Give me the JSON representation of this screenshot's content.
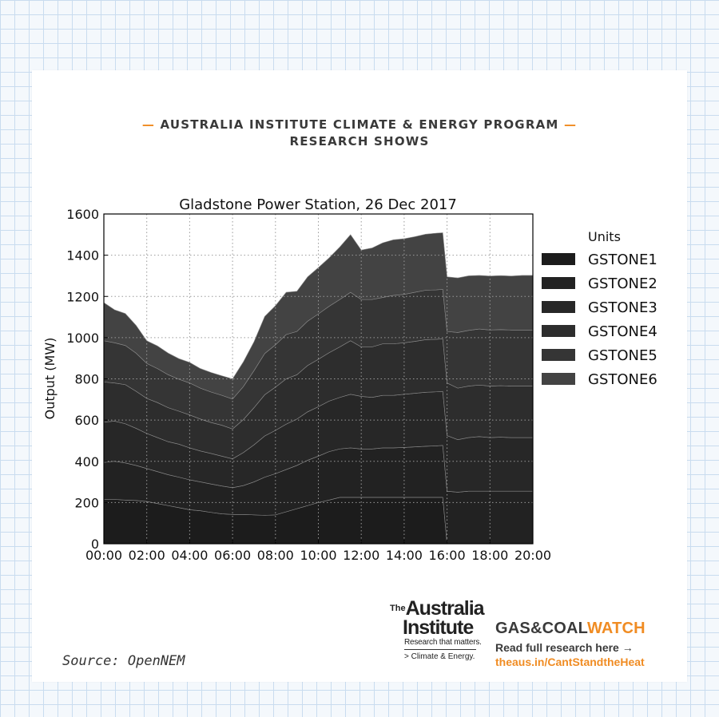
{
  "header": {
    "line1": "AUSTRALIA INSTITUTE CLIMATE & ENERGY PROGRAM",
    "line2": "RESEARCH SHOWS",
    "dash": "—",
    "accent_color": "#f08c23"
  },
  "chart_data": {
    "type": "area",
    "stacked": true,
    "title": "Gladstone Power Station, 26 Dec 2017",
    "xlabel": "",
    "ylabel": "Output (MW)",
    "ylim": [
      0,
      1600
    ],
    "xlim": [
      0,
      20
    ],
    "grid": true,
    "legend_title": "Units",
    "legend_position": "right",
    "x_tick_labels": [
      "00:00",
      "02:00",
      "04:00",
      "06:00",
      "08:00",
      "10:00",
      "12:00",
      "14:00",
      "16:00",
      "18:00",
      "20:00"
    ],
    "y_ticks": [
      0,
      200,
      400,
      600,
      800,
      1000,
      1200,
      1400,
      1600
    ],
    "x_hours": [
      0,
      0.5,
      1,
      1.5,
      2,
      2.5,
      3,
      3.5,
      4,
      4.5,
      5,
      5.5,
      6,
      6.5,
      7,
      7.5,
      8,
      8.5,
      9,
      9.5,
      10,
      10.5,
      11,
      11.5,
      12,
      12.5,
      13,
      13.5,
      14,
      14.5,
      15,
      15.5,
      15.8,
      16,
      16.5,
      17,
      17.5,
      18,
      18.5,
      19,
      19.5,
      20
    ],
    "series": [
      {
        "name": "GSTONE1",
        "color": "#1c1c1c",
        "values": [
          215,
          215,
          212,
          210,
          205,
          195,
          185,
          175,
          165,
          160,
          152,
          145,
          142,
          142,
          140,
          138,
          140,
          155,
          170,
          185,
          200,
          212,
          225,
          225,
          225,
          225,
          225,
          225,
          225,
          225,
          225,
          225,
          225,
          0,
          0,
          0,
          0,
          0,
          0,
          0,
          0,
          0
        ]
      },
      {
        "name": "GSTONE2",
        "color": "#222222",
        "values": [
          180,
          185,
          180,
          170,
          160,
          155,
          150,
          148,
          145,
          140,
          138,
          135,
          130,
          140,
          160,
          185,
          200,
          205,
          210,
          220,
          225,
          235,
          235,
          240,
          235,
          235,
          240,
          240,
          242,
          245,
          248,
          250,
          252,
          255,
          250,
          255,
          255,
          255,
          255,
          255,
          255,
          255
        ]
      },
      {
        "name": "GSTONE3",
        "color": "#272727",
        "values": [
          195,
          195,
          190,
          180,
          170,
          165,
          160,
          160,
          155,
          150,
          148,
          145,
          140,
          160,
          180,
          200,
          210,
          220,
          225,
          235,
          240,
          245,
          250,
          260,
          255,
          250,
          255,
          255,
          258,
          260,
          262,
          262,
          262,
          270,
          255,
          260,
          265,
          260,
          262,
          260,
          260,
          260
        ]
      },
      {
        "name": "GSTONE4",
        "color": "#2d2d2d",
        "values": [
          195,
          185,
          190,
          180,
          170,
          170,
          165,
          160,
          160,
          155,
          150,
          150,
          145,
          160,
          180,
          200,
          210,
          220,
          215,
          225,
          230,
          235,
          245,
          260,
          240,
          245,
          250,
          250,
          250,
          252,
          255,
          255,
          255,
          255,
          250,
          250,
          250,
          250,
          250,
          250,
          250,
          250
        ]
      },
      {
        "name": "GSTONE5",
        "color": "#353535",
        "values": [
          200,
          195,
          190,
          185,
          170,
          165,
          160,
          155,
          155,
          150,
          148,
          145,
          145,
          160,
          180,
          200,
          205,
          215,
          210,
          215,
          220,
          225,
          230,
          235,
          230,
          230,
          225,
          235,
          235,
          238,
          240,
          240,
          240,
          250,
          270,
          270,
          272,
          272,
          272,
          272,
          272,
          272
        ]
      },
      {
        "name": "GSTONE6",
        "color": "#434343",
        "values": [
          185,
          160,
          155,
          135,
          110,
          110,
          105,
          100,
          100,
          95,
          95,
          95,
          98,
          120,
          140,
          180,
          190,
          205,
          195,
          215,
          225,
          235,
          255,
          280,
          240,
          250,
          265,
          270,
          270,
          270,
          272,
          275,
          275,
          265,
          265,
          265,
          260,
          262,
          262,
          262,
          265,
          265
        ]
      }
    ]
  },
  "source": "Source: OpenNEM",
  "logo_tai": {
    "the": "The",
    "line1": "Australia",
    "line2": "Institute",
    "tagline": "Research that matters.",
    "sub": "> Climate & Energy."
  },
  "gcw": {
    "gas_coal": "GAS&COAL",
    "watch": "WATCH",
    "read": "Read full research here →",
    "url": "theaus.in/CantStandtheHeat"
  }
}
